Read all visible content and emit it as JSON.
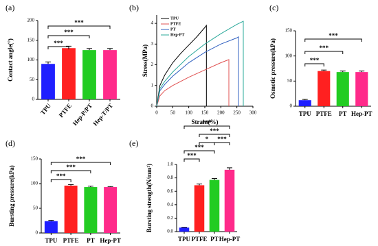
{
  "chart_data": [
    {
      "type": "bar",
      "label": "(a)",
      "y_label": "Contact angle(°)",
      "categories": [
        "TPU",
        "PTFE",
        "Hep-P/PT",
        "Hep-T/PT"
      ],
      "values": [
        90,
        130,
        125,
        125
      ],
      "errors": [
        5,
        5,
        4,
        4
      ],
      "colors": [
        "#1f1fff",
        "#ff2020",
        "#22cc22",
        "#ff2a8a"
      ],
      "ylim": [
        0,
        200
      ],
      "yticks": [
        0,
        50,
        100,
        150,
        200
      ],
      "annotations": [
        "***",
        "***",
        "***"
      ]
    },
    {
      "type": "line",
      "label": "(b)",
      "y_label": "Stress(MPa)",
      "x_label": "Strain(%)",
      "xlim": [
        0,
        300
      ],
      "xticks": [
        0,
        50,
        100,
        150,
        200,
        250,
        300
      ],
      "ylim": [
        0,
        4.4
      ],
      "yticks": [
        0,
        1,
        2,
        3,
        4
      ],
      "series": [
        {
          "name": "TPU",
          "color": "#000000",
          "x": [
            0,
            10,
            25,
            50,
            75,
            100,
            125,
            150,
            155,
            155
          ],
          "values": [
            0,
            1.0,
            1.5,
            2.1,
            2.55,
            2.95,
            3.35,
            3.8,
            3.9,
            0
          ]
        },
        {
          "name": "PTFE",
          "color": "#e05050",
          "x": [
            0,
            10,
            25,
            50,
            100,
            150,
            200,
            225,
            225
          ],
          "values": [
            0,
            0.5,
            0.75,
            1.0,
            1.4,
            1.75,
            2.1,
            2.25,
            0
          ]
        },
        {
          "name": "PT",
          "color": "#3060c0",
          "x": [
            0,
            10,
            25,
            50,
            100,
            150,
            200,
            250,
            255,
            255
          ],
          "values": [
            0,
            0.75,
            1.05,
            1.45,
            2.1,
            2.6,
            3.0,
            3.3,
            3.35,
            0
          ]
        },
        {
          "name": "Hep-PT",
          "color": "#2aa89a",
          "x": [
            0,
            10,
            25,
            50,
            100,
            150,
            200,
            250,
            270,
            270
          ],
          "values": [
            0,
            0.85,
            1.2,
            1.65,
            2.4,
            3.0,
            3.5,
            3.95,
            4.1,
            0
          ]
        }
      ]
    },
    {
      "type": "bar",
      "label": "(c)",
      "y_label": "Osmotic pressure(kPa)",
      "categories": [
        "TPU",
        "PTFE",
        "PT",
        "Hep-PT"
      ],
      "values": [
        12,
        70,
        68,
        68
      ],
      "errors": [
        1.5,
        2,
        2,
        2
      ],
      "colors": [
        "#1f1fff",
        "#ff2020",
        "#22cc22",
        "#ff2a8a"
      ],
      "ylim": [
        0,
        150
      ],
      "yticks": [
        0,
        50,
        100,
        150
      ],
      "annotations": [
        "***",
        "***",
        "***"
      ]
    },
    {
      "type": "bar",
      "label": "(d)",
      "y_label": "Bursting pressure(kPa)",
      "categories": [
        "TPU",
        "PTFE",
        "PT",
        "Hep-PT"
      ],
      "values": [
        24,
        96,
        93,
        93
      ],
      "errors": [
        1.5,
        2,
        2,
        1
      ],
      "colors": [
        "#1f1fff",
        "#ff2020",
        "#22cc22",
        "#ff2a8a"
      ],
      "ylim": [
        0,
        150
      ],
      "yticks": [
        0,
        50,
        100,
        150
      ],
      "annotations": [
        "***",
        "***",
        "***"
      ]
    },
    {
      "type": "bar",
      "label": "(e)",
      "y_label": "Bursting strength(N/mm²)",
      "categories": [
        "TPU",
        "PTFE",
        "PT",
        "Hep-PT"
      ],
      "values": [
        0.06,
        0.69,
        0.77,
        0.92
      ],
      "errors": [
        0.005,
        0.02,
        0.02,
        0.03
      ],
      "colors": [
        "#1f1fff",
        "#ff2020",
        "#22cc22",
        "#ff2a8a"
      ],
      "ylim": [
        0,
        1.0
      ],
      "yticks": [
        {
          "value": 0,
          "label": "0.0"
        },
        0.2,
        0.4,
        0.6,
        0.8,
        {
          "value": 1,
          "label": "1.0"
        }
      ],
      "annotations": [
        "***",
        "***",
        "*",
        "***",
        "***",
        "***"
      ]
    }
  ]
}
